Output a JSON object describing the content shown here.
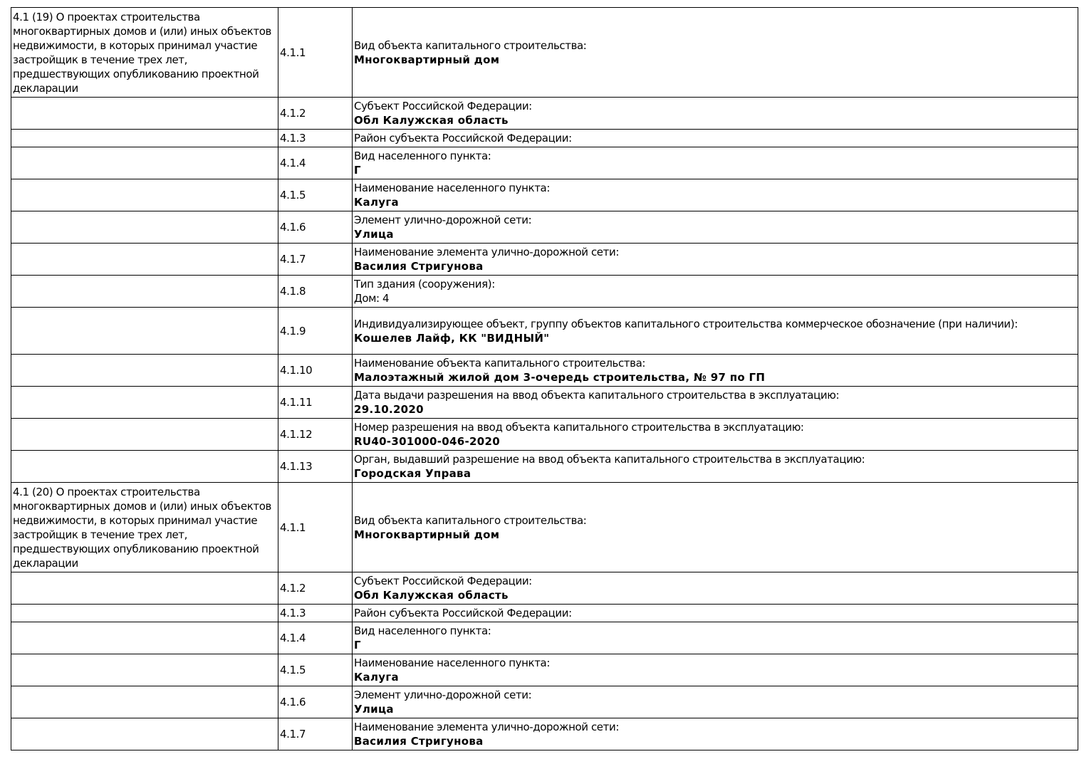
{
  "sections": [
    {
      "title": "4.1 (19) О проектах строительства многоквартирных домов и (или) иных объектов недвижимости, в которых принимал участие застройщик в течение трех лет, предшествующих опубликованию проектной декларации",
      "rows": [
        {
          "code": "4.1.1",
          "label": "Вид объекта капитального строительства:",
          "value": "Многоквартирный дом"
        },
        {
          "code": "4.1.2",
          "label": "Субъект Российской Федерации:",
          "value": "Обл Калужская область"
        },
        {
          "code": "4.1.3",
          "label": "Район субъекта Российской Федерации:"
        },
        {
          "code": "4.1.4",
          "label": "Вид населенного пункта:",
          "value": "Г"
        },
        {
          "code": "4.1.5",
          "label": "Наименование населенного пункта:",
          "value": "Калуга"
        },
        {
          "code": "4.1.6",
          "label": "Элемент улично-дорожной сети:",
          "value": "Улица"
        },
        {
          "code": "4.1.7",
          "label": "Наименование элемента улично-дорожной сети:",
          "value": "Василия Стригунова"
        },
        {
          "code": "4.1.8",
          "label": "Тип здания (сооружения):",
          "plain": "Дом: 4"
        },
        {
          "code": "4.1.9",
          "label": "Индивидуализирующее объект, группу объектов капитального строительства коммерческое обозначение (при наличии):",
          "value": "Кошелев Лайф, КК \"ВИДНЫЙ\""
        },
        {
          "code": "4.1.10",
          "label": "Наименование объекта капитального строительства:",
          "value": "Малоэтажный жилой дом 3-очередь строительства, № 97 по ГП"
        },
        {
          "code": "4.1.11",
          "label": "Дата выдачи разрешения на ввод объекта капитального строительства в эксплуатацию:",
          "value": "29.10.2020"
        },
        {
          "code": "4.1.12",
          "label": "Номер разрешения на ввод объекта капитального строительства в эксплуатацию:",
          "value": "RU40-301000-046-2020"
        },
        {
          "code": "4.1.13",
          "label": "Орган, выдавший разрешение на ввод объекта капитального строительства в эксплуатацию:",
          "value": "Городская Управа"
        }
      ]
    },
    {
      "title": "4.1 (20) О проектах строительства многоквартирных домов и (или) иных объектов недвижимости, в которых принимал участие застройщик в течение трех лет, предшествующих опубликованию проектной декларации",
      "rows": [
        {
          "code": "4.1.1",
          "label": "Вид объекта капитального строительства:",
          "value": "Многоквартирный дом"
        },
        {
          "code": "4.1.2",
          "label": "Субъект Российской Федерации:",
          "value": "Обл Калужская область"
        },
        {
          "code": "4.1.3",
          "label": "Район субъекта Российской Федерации:"
        },
        {
          "code": "4.1.4",
          "label": "Вид населенного пункта:",
          "value": "Г"
        },
        {
          "code": "4.1.5",
          "label": "Наименование населенного пункта:",
          "value": "Калуга"
        },
        {
          "code": "4.1.6",
          "label": "Элемент улично-дорожной сети:",
          "value": "Улица"
        },
        {
          "code": "4.1.7",
          "label": "Наименование элемента улично-дорожной сети:",
          "value": "Василия Стригунова"
        }
      ]
    }
  ]
}
